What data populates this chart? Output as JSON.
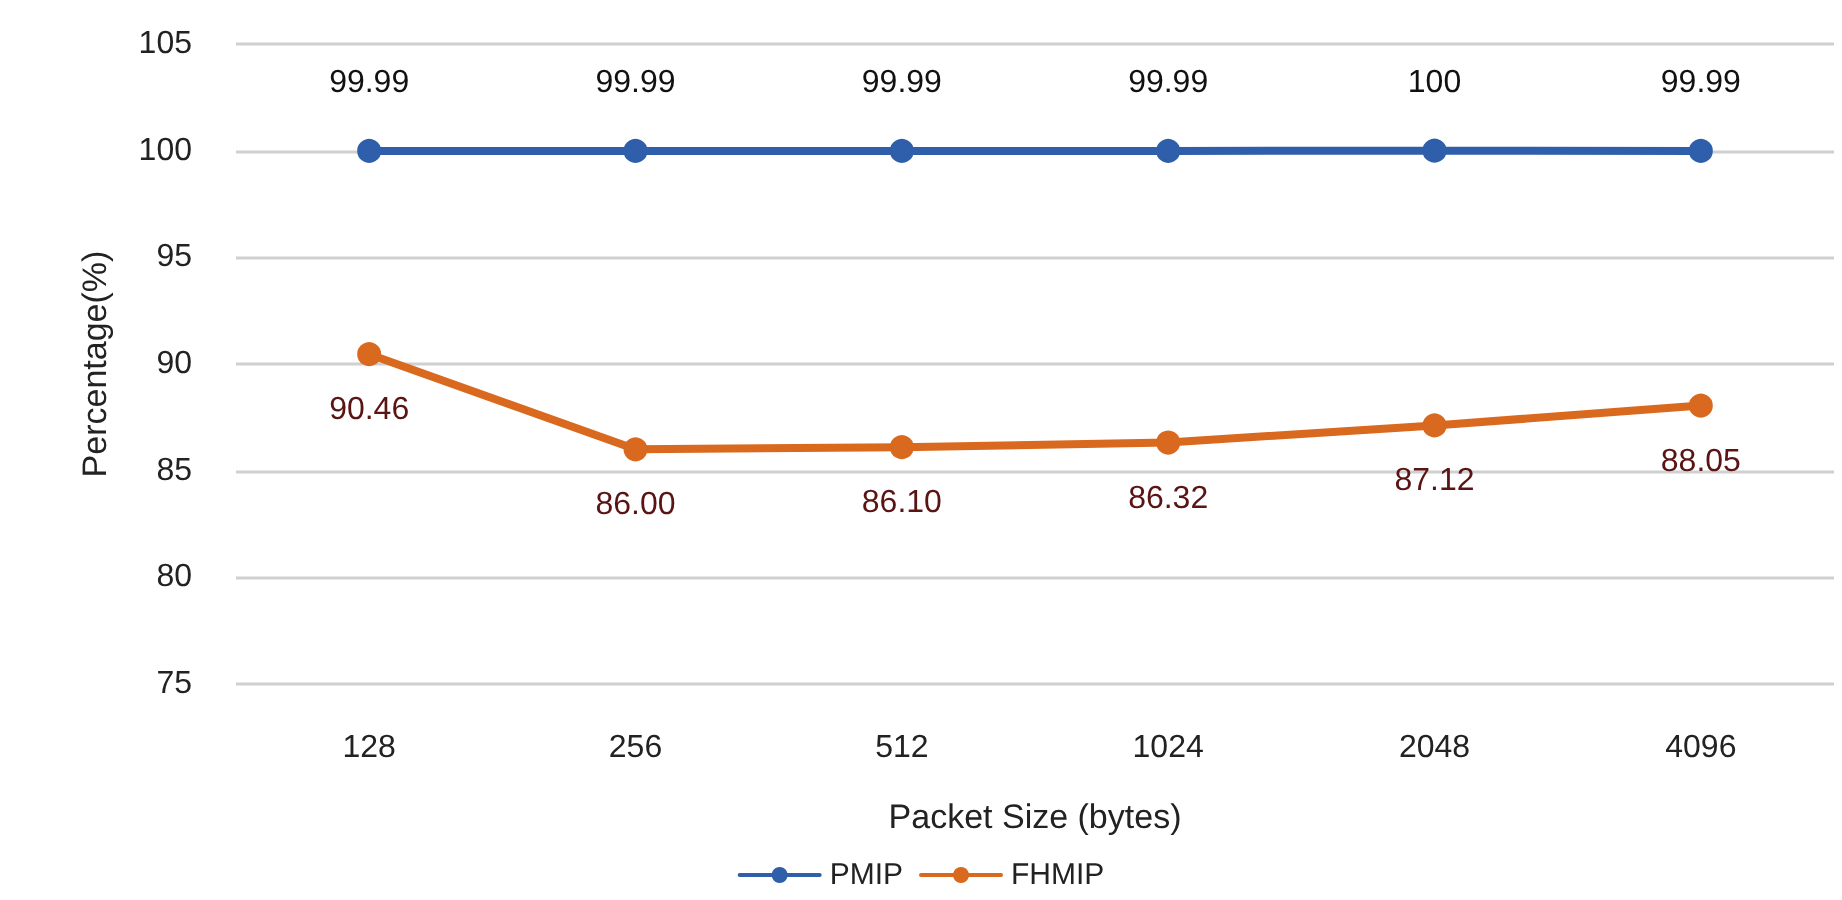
{
  "chart_data": {
    "type": "line",
    "xlabel": "Packet Size (bytes)",
    "ylabel": "Percentage(%)",
    "categories": [
      "128",
      "256",
      "512",
      "1024",
      "2048",
      "4096"
    ],
    "series": [
      {
        "name": "PMIP",
        "color": "#2f5faa",
        "values": [
          99.99,
          99.99,
          99.99,
          99.99,
          100,
          99.99
        ],
        "value_labels": [
          "99.99",
          "99.99",
          "99.99",
          "99.99",
          "100",
          "99.99"
        ]
      },
      {
        "name": "FHMIP",
        "color": "#d9691e",
        "values": [
          90.46,
          86,
          86.1,
          86.32,
          87.12,
          88.05
        ],
        "value_labels": [
          "90.46",
          "86.00",
          "86.10",
          "86.32",
          "87.12",
          "88.05"
        ]
      }
    ],
    "ylim": [
      75,
      105
    ],
    "yticks": [
      75,
      80,
      85,
      90,
      95,
      100,
      105
    ],
    "grid": "y",
    "legend": "bottom",
    "marker": "circle",
    "line_style": "solid"
  }
}
